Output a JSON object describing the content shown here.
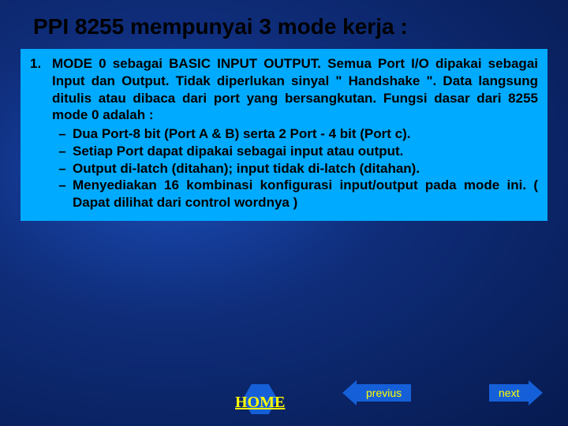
{
  "title": "PPI 8255 mempunyai 3 mode kerja :",
  "item": {
    "number": "1.",
    "heading": "MODE 0 sebagai BASIC INPUT OUTPUT.",
    "body": "Semua Port I/O dipakai sebagai Input dan Output. Tidak diperlukan sinyal \" Handshake \". Data langsung ditulis atau dibaca dari port yang bersangkutan. Fungsi dasar dari 8255 mode 0 adalah :",
    "bullets": [
      "Dua Port-8 bit (Port A & B) serta 2 Port - 4 bit (Port c).",
      "Setiap Port dapat dipakai sebagai input atau output.",
      "Output di-latch (ditahan); input tidak di-latch (ditahan).",
      "Menyediakan 16 kombinasi konfigurasi input/output pada mode ini.  ( Dapat dilihat dari control wordnya )"
    ]
  },
  "nav": {
    "home": "HOME",
    "prev": "previus",
    "next": "next"
  },
  "colors": {
    "box_bg": "#00aaff",
    "nav_shape": "#1560d8",
    "nav_text": "#ffff00"
  }
}
